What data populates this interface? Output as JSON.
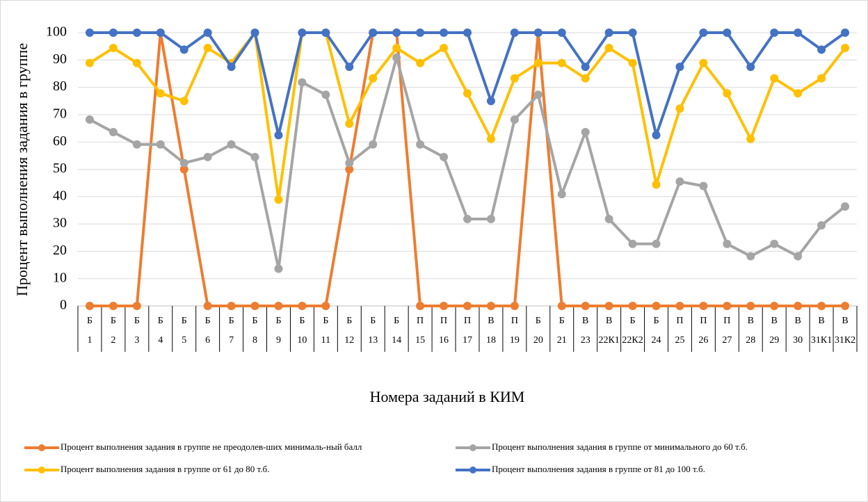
{
  "chart_data": {
    "type": "line",
    "y_label": "Процент выполнения задания в группе",
    "x_label": "Номера заданий в КИМ",
    "levels": [
      "Б",
      "Б",
      "Б",
      "Б",
      "Б",
      "Б",
      "Б",
      "Б",
      "Б",
      "Б",
      "Б",
      "Б",
      "Б",
      "Б",
      "П",
      "П",
      "П",
      "В",
      "П",
      "Б",
      "Б",
      "В",
      "В",
      "Б",
      "Б",
      "П",
      "П",
      "П",
      "В",
      "В",
      "В",
      "В",
      "В"
    ],
    "categories": [
      "1",
      "2",
      "3",
      "4",
      "5",
      "6",
      "7",
      "8",
      "9",
      "10",
      "11",
      "12",
      "13",
      "14",
      "15",
      "16",
      "17",
      "18",
      "19",
      "20",
      "21",
      "23",
      "22К1",
      "22К2",
      "24",
      "25",
      "26",
      "27",
      "28",
      "29",
      "30",
      "31К1",
      "31К2"
    ],
    "series": [
      {
        "name": "Процент выполнения задания в группе не преодолев-ших минималь-ный балл",
        "color": "#ed7d31",
        "values": [
          0,
          0,
          0,
          100,
          50,
          0,
          0,
          0,
          0,
          0,
          0,
          50,
          100,
          100,
          0,
          0,
          0,
          0,
          0,
          100,
          0,
          0,
          0,
          0,
          0,
          0,
          0,
          0,
          0,
          0,
          0,
          0,
          0
        ]
      },
      {
        "name": "Процент выполнения задания в группе от минимального до 60 т.б.",
        "color": "#a5a5a5",
        "values": [
          68.2,
          63.6,
          59.1,
          59.1,
          52.3,
          54.5,
          59.1,
          54.5,
          13.6,
          81.8,
          77.3,
          52.3,
          59.1,
          90.9,
          59.1,
          54.5,
          31.8,
          31.8,
          68.2,
          77.3,
          40.9,
          63.6,
          31.8,
          22.7,
          22.7,
          45.5,
          43.9,
          22.7,
          18.2,
          22.7,
          18.2,
          29.5,
          36.4
        ]
      },
      {
        "name": "Процент выполнения задания в группе от 61 до 80 т.б.",
        "color": "#ffc000",
        "values": [
          88.9,
          94.4,
          88.9,
          77.8,
          75,
          94.4,
          88.9,
          100,
          38.9,
          100,
          100,
          66.7,
          83.3,
          94.4,
          88.9,
          94.4,
          77.8,
          61.1,
          83.3,
          88.9,
          88.9,
          83.3,
          94.4,
          88.9,
          44.4,
          72.2,
          88.9,
          77.8,
          61.1,
          83.3,
          77.8,
          83.3,
          94.4
        ]
      },
      {
        "name": "Процент выполнения задания в группе от 81 до 100 т.б.",
        "color": "#4472c4",
        "values": [
          100,
          100,
          100,
          100,
          93.8,
          100,
          87.5,
          100,
          62.5,
          100,
          100,
          87.5,
          100,
          100,
          100,
          100,
          100,
          75,
          100,
          100,
          100,
          87.5,
          100,
          100,
          62.5,
          87.5,
          100,
          100,
          87.5,
          100,
          100,
          93.8,
          100
        ]
      }
    ],
    "ylim": [
      0,
      100
    ],
    "yticks": [
      0,
      10,
      20,
      30,
      40,
      50,
      60,
      70,
      80,
      90,
      100
    ],
    "grid": true
  }
}
